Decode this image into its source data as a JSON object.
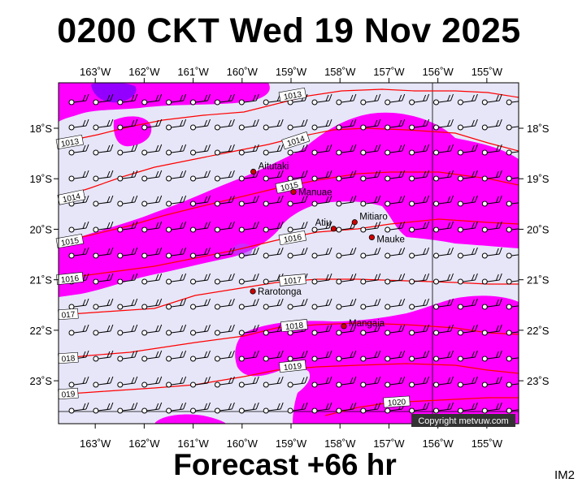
{
  "title": "0200 CKT Wed 19 Nov 2025",
  "footer": "Forecast +66 hr",
  "corner_tag": "IM2",
  "copyright": "Copyright metvuw.com",
  "colors": {
    "background": "#e6e6f8",
    "rain": "#ff00ff",
    "rain_heavy": "#7000ff",
    "isobar": "#ff0000",
    "wind_barb": "#000000"
  },
  "map": {
    "lon_range": [
      -163.75,
      -154.35
    ],
    "lat_range": [
      -23.85,
      -17.1
    ],
    "lon_ticks": [
      "163˚W",
      "162˚W",
      "161˚W",
      "160˚W",
      "159˚W",
      "158˚W",
      "157˚W",
      "156˚W",
      "155˚W"
    ],
    "lat_ticks": [
      "18˚S",
      "19˚S",
      "20˚S",
      "21˚S",
      "22˚S",
      "23˚S"
    ],
    "places": [
      {
        "name": "Aitutaki",
        "lon": -159.77,
        "lat": -18.86
      },
      {
        "name": "Manuae",
        "lon": -158.95,
        "lat": -19.26
      },
      {
        "name": "Mitiaro",
        "lon": -157.7,
        "lat": -19.86
      },
      {
        "name": "Atiu",
        "lon": -158.13,
        "lat": -19.99
      },
      {
        "name": "Mauke",
        "lon": -157.35,
        "lat": -20.16
      },
      {
        "name": "Rarotonga",
        "lon": -159.78,
        "lat": -21.23
      },
      {
        "name": "Mangaia",
        "lon": -157.92,
        "lat": -21.92
      }
    ],
    "isobar_labels": [
      "1013",
      "1013",
      "1014",
      "1014",
      "1015",
      "1015",
      "1016",
      "1016",
      "1017",
      "017",
      "1018",
      "018",
      "1019",
      "019",
      "1020"
    ]
  }
}
